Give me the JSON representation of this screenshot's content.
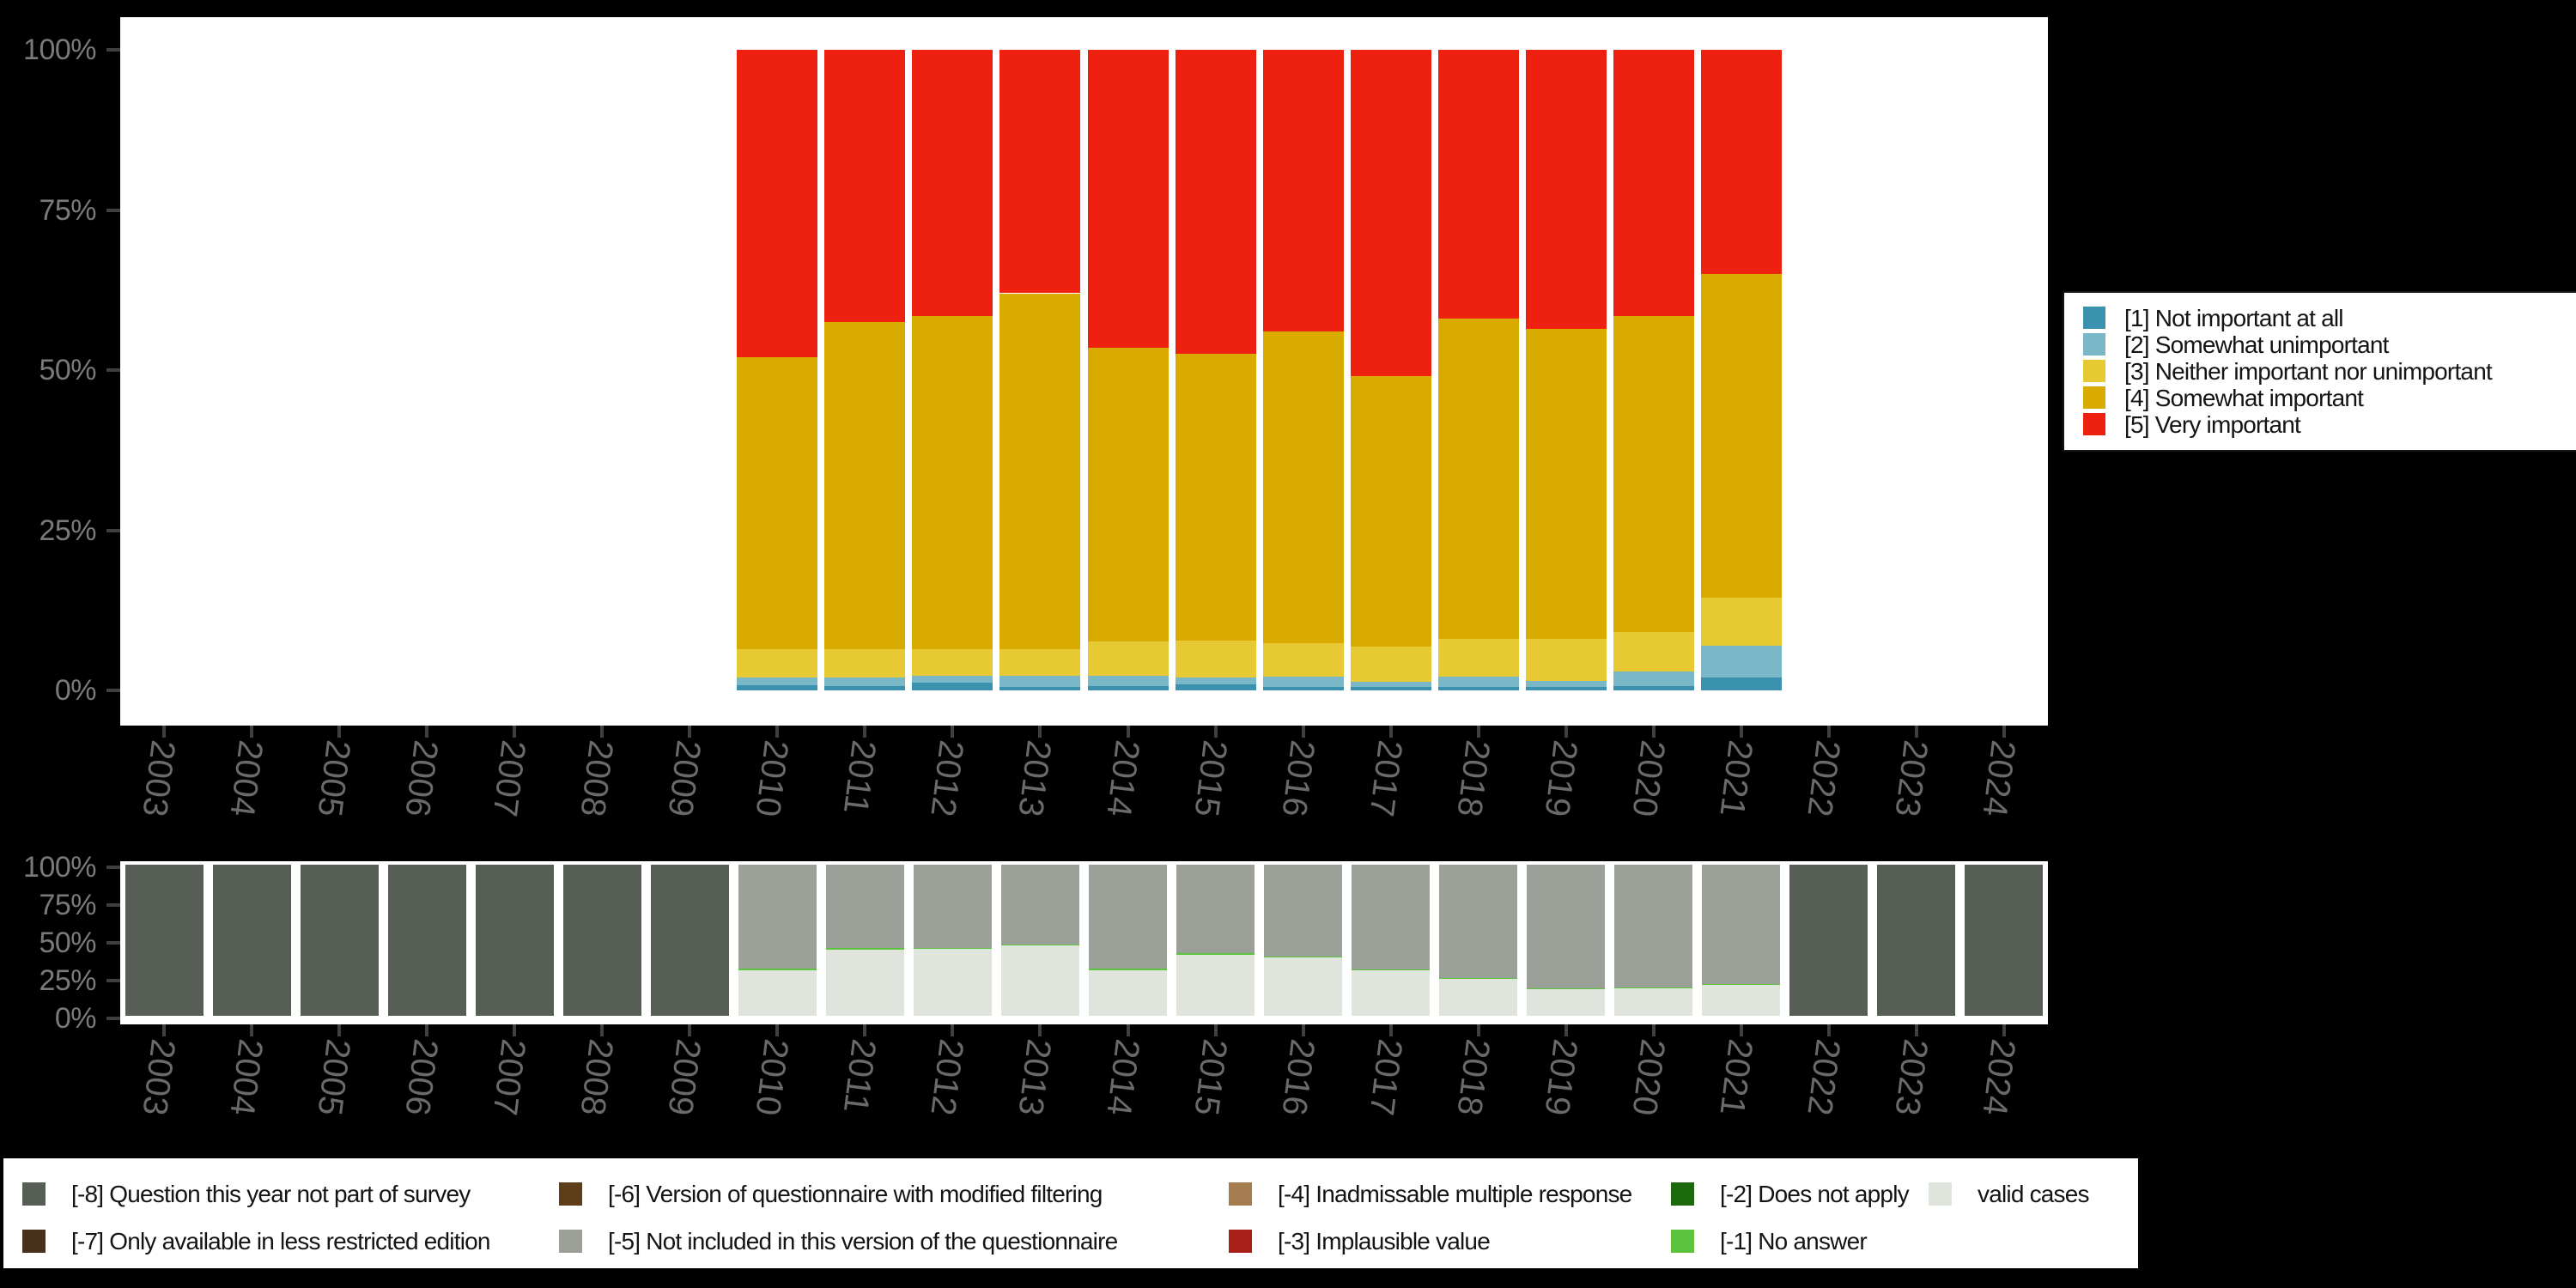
{
  "colors": {
    "background": "#000000",
    "plot_background": "#ffffff",
    "axis_label": "#7a7a7a",
    "year_label": "#6a6a6a",
    "tick": "#3f3f3f",
    "legend_text": "#141414"
  },
  "years": [
    "2003",
    "2004",
    "2005",
    "2006",
    "2007",
    "2008",
    "2009",
    "2010",
    "2011",
    "2012",
    "2013",
    "2014",
    "2015",
    "2016",
    "2017",
    "2018",
    "2019",
    "2020",
    "2021",
    "2022",
    "2023",
    "2024"
  ],
  "y_axis_ticks": [
    "100%",
    "75%",
    "50%",
    "25%",
    "0%"
  ],
  "y_axis_values": [
    100,
    75,
    50,
    25,
    0
  ],
  "chart_data": [
    {
      "type": "bar",
      "stacked": true,
      "title": "",
      "xlabel": "",
      "ylabel": "",
      "ylim": [
        0,
        100
      ],
      "grid": false,
      "legend_position": "right",
      "categories": [
        "2003",
        "2004",
        "2005",
        "2006",
        "2007",
        "2008",
        "2009",
        "2010",
        "2011",
        "2012",
        "2013",
        "2014",
        "2015",
        "2016",
        "2017",
        "2018",
        "2019",
        "2020",
        "2021",
        "2022",
        "2023",
        "2024"
      ],
      "series": [
        {
          "name": "[1] Not important at all",
          "color": "#3a92af",
          "values": [
            0,
            0,
            0,
            0,
            0,
            0,
            0,
            0.8,
            0.7,
            1.2,
            0.5,
            0.7,
            1.0,
            0.5,
            0.5,
            0.6,
            0.5,
            0.7,
            2.0,
            0,
            0,
            0
          ]
        },
        {
          "name": "[2] Somewhat unimportant",
          "color": "#7ab8c7",
          "values": [
            0,
            0,
            0,
            0,
            0,
            0,
            0,
            1.2,
            1.3,
            1.1,
            1.8,
            1.6,
            1.0,
            1.7,
            0.8,
            1.5,
            1.0,
            2.3,
            5.0,
            0,
            0,
            0
          ]
        },
        {
          "name": "[3] Neither important nor unimportant",
          "color": "#e7ca33",
          "values": [
            0,
            0,
            0,
            0,
            0,
            0,
            0,
            4.5,
            4.5,
            4.2,
            4.2,
            5.4,
            5.8,
            5.2,
            5.6,
            5.9,
            6.6,
            6.1,
            7.5,
            0,
            0,
            0
          ]
        },
        {
          "name": "[4] Somewhat important",
          "color": "#d9ab00",
          "values": [
            0,
            0,
            0,
            0,
            0,
            0,
            0,
            45.5,
            51.0,
            52.0,
            55.5,
            45.8,
            44.7,
            48.6,
            42.1,
            50.0,
            48.4,
            49.4,
            50.5,
            0,
            0,
            0
          ]
        },
        {
          "name": "[5] Very important",
          "color": "#ee2010",
          "values": [
            0,
            0,
            0,
            0,
            0,
            0,
            0,
            48.0,
            42.5,
            41.5,
            38.0,
            46.5,
            47.5,
            44.0,
            51.0,
            42.0,
            43.5,
            41.5,
            35.0,
            0,
            0,
            0
          ]
        }
      ]
    },
    {
      "type": "bar",
      "stacked": true,
      "title": "",
      "xlabel": "",
      "ylabel": "",
      "ylim": [
        0,
        100
      ],
      "grid": false,
      "legend_position": "bottom",
      "categories": [
        "2003",
        "2004",
        "2005",
        "2006",
        "2007",
        "2008",
        "2009",
        "2010",
        "2011",
        "2012",
        "2013",
        "2014",
        "2015",
        "2016",
        "2017",
        "2018",
        "2019",
        "2020",
        "2021",
        "2022",
        "2023",
        "2024"
      ],
      "series": [
        {
          "name": "valid cases",
          "color": "#dfe4dc",
          "values": [
            0,
            0,
            0,
            0,
            0,
            0,
            0,
            30.0,
            44.0,
            44.5,
            46.5,
            30.0,
            40.5,
            38.5,
            30.0,
            24.5,
            18.0,
            18.5,
            20.5,
            0,
            0,
            0
          ]
        },
        {
          "name": "[-1] No answer",
          "color": "#5cc340",
          "values": [
            0,
            0,
            0,
            0,
            0,
            0,
            0,
            1.0,
            0.8,
            0.5,
            0.6,
            1.0,
            0.9,
            0.9,
            0.9,
            0.4,
            0.4,
            0.4,
            0.4,
            0,
            0,
            0
          ]
        },
        {
          "name": "[-5] Not included in this version of the questionnaire",
          "color": "#9aa098",
          "values": [
            0,
            0,
            0,
            0,
            0,
            0,
            0,
            69.0,
            55.2,
            55.0,
            52.9,
            69.0,
            58.6,
            60.6,
            69.1,
            75.1,
            81.6,
            81.1,
            79.1,
            0,
            0,
            0
          ]
        },
        {
          "name": "[-8] Question this year not part of survey",
          "color": "#565e55",
          "values": [
            100,
            100,
            100,
            100,
            100,
            100,
            100,
            0,
            0,
            0,
            0,
            0,
            0,
            0,
            0,
            0,
            0,
            0,
            0,
            100,
            100,
            100
          ]
        }
      ]
    }
  ],
  "top_legend": {
    "items": [
      {
        "label": "[1] Not important at all",
        "color": "#3a92af"
      },
      {
        "label": "[2] Somewhat unimportant",
        "color": "#7ab8c7"
      },
      {
        "label": "[3] Neither important nor unimportant",
        "color": "#e7ca33"
      },
      {
        "label": "[4] Somewhat important",
        "color": "#d9ab00"
      },
      {
        "label": "[5] Very important",
        "color": "#ee2010"
      }
    ]
  },
  "bottom_legend": {
    "items": [
      {
        "label": "[-8] Question this year not part of survey",
        "color": "#565e55"
      },
      {
        "label": "[-7] Only available in less restricted edition",
        "color": "#48301a"
      },
      {
        "label": "[-6] Version of questionnaire with modified filtering",
        "color": "#5e3d19"
      },
      {
        "label": "[-5] Not included in this version of the questionnaire",
        "color": "#9aa098"
      },
      {
        "label": "[-4] Inadmissable multiple response",
        "color": "#a57c50"
      },
      {
        "label": "[-3] Implausible value",
        "color": "#a82017"
      },
      {
        "label": "[-2] Does not apply",
        "color": "#1d6a0e"
      },
      {
        "label": "[-1] No answer",
        "color": "#5cc340"
      },
      {
        "label": "valid cases",
        "color": "#dfe4dc"
      }
    ]
  }
}
